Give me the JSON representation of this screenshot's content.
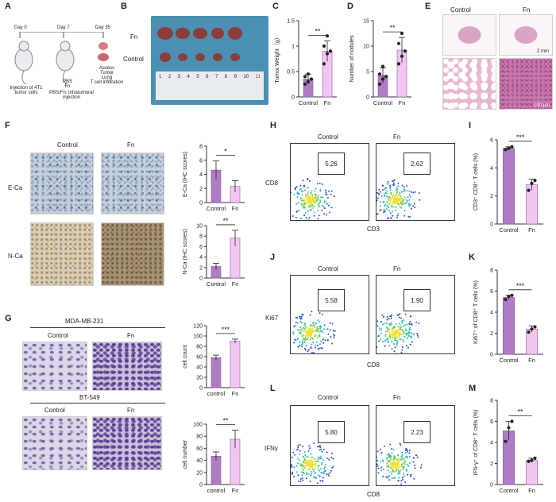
{
  "panels": {
    "A": {
      "letter": "A",
      "days": [
        "Day 0",
        "Day 7",
        "Day 35"
      ],
      "labels": [
        "Injection of 4T1 tumor cells",
        "PBS\nFn",
        "Assess\nTumor\nLung\nT cell infiltration"
      ],
      "note": "PBS/Fn: intratumoral injection"
    },
    "B": {
      "letter": "B",
      "row_fn": "Fn",
      "row_control": "Control",
      "ruler": [
        "1",
        "2",
        "3",
        "4",
        "5",
        "6",
        "7",
        "8",
        "9",
        "10",
        "11"
      ]
    },
    "C": {
      "letter": "C",
      "ylabel": "Tumor Weight（g）",
      "sig": "**",
      "categories": [
        "Control",
        "Fn"
      ]
    },
    "D": {
      "letter": "D",
      "ylabel": "Number of nodules",
      "sig": "**",
      "categories": [
        "Control",
        "Fn"
      ]
    },
    "E": {
      "letter": "E",
      "col_control": "Control",
      "col_fn": "Fn",
      "scale1": "2 mm",
      "scale2": "100 μm"
    },
    "F": {
      "letter": "F",
      "col_control": "Control",
      "col_fn": "Fn",
      "row1": "E-Ca",
      "row2": "N-Ca"
    },
    "G": {
      "letter": "G",
      "cell1": "MDA-MB-231",
      "cell2": "BT-549",
      "col_control": "Control",
      "col_fn": "Fn"
    },
    "H": {
      "letter": "H",
      "col_control": "Control",
      "col_fn": "Fn",
      "ylabel": "CD8",
      "xlabel": "CD3",
      "val_control": "5.26",
      "val_fn": "2.62"
    },
    "I": {
      "letter": "I",
      "ylabel": "CD3⁺ CD8⁺ T cells (%)",
      "sig": "***"
    },
    "J": {
      "letter": "J",
      "col_control": "Control",
      "col_fn": "Fn",
      "ylabel": "Ki67",
      "xlabel": "CD8",
      "val_control": "5.58",
      "val_fn": "1.90"
    },
    "K": {
      "letter": "K",
      "ylabel": "Ki67⁺ of CD8⁺ T cells (%)",
      "sig": "***"
    },
    "L": {
      "letter": "L",
      "col_control": "Control",
      "col_fn": "Fn",
      "ylabel": "IFNγ",
      "xlabel": "CD8",
      "val_control": "5.80",
      "val_fn": "2.23"
    },
    "M": {
      "letter": "M",
      "ylabel": "IFN-γ⁺ of CD8⁺ T cells (%)",
      "sig": "**"
    }
  },
  "colors": {
    "control": "#b07cc6",
    "fn": "#f3c6f2",
    "bar_edge": "#8a5aa0"
  },
  "chart_data": [
    {
      "id": "C",
      "type": "bar",
      "categories": [
        "Control",
        "Fn"
      ],
      "values": [
        0.35,
        0.9
      ],
      "errors": [
        0.1,
        0.2
      ],
      "points": [
        [
          0.25,
          0.3,
          0.35,
          0.4,
          0.45
        ],
        [
          0.65,
          0.85,
          0.9,
          1.0,
          1.2
        ]
      ],
      "ylabel": "Tumor Weight（g）",
      "ylim": [
        0,
        1.5
      ],
      "ticks": [
        0.0,
        0.5,
        1.0,
        1.5
      ],
      "sig": "**"
    },
    {
      "id": "D",
      "type": "bar",
      "categories": [
        "Control",
        "Fn"
      ],
      "values": [
        4.2,
        9.2
      ],
      "errors": [
        1.5,
        2.5
      ],
      "points": [
        [
          2.5,
          3.5,
          4.0,
          4.5,
          6.0
        ],
        [
          6.5,
          8.0,
          9.0,
          10.5,
          12.5
        ]
      ],
      "ylabel": "Number of nodules",
      "ylim": [
        0,
        15
      ],
      "ticks": [
        0,
        5,
        10,
        15
      ],
      "sig": "**"
    },
    {
      "id": "F1",
      "type": "bar",
      "categories": [
        "Control",
        "Fn"
      ],
      "values": [
        4.6,
        2.3
      ],
      "errors": [
        1.3,
        0.8
      ],
      "points": [
        [],
        []
      ],
      "ylabel": "E-Ca (IHC scores)",
      "ylim": [
        0,
        8
      ],
      "ticks": [
        0,
        2,
        4,
        6,
        8
      ],
      "sig": "*"
    },
    {
      "id": "F2",
      "type": "bar",
      "categories": [
        "Control",
        "Fn"
      ],
      "values": [
        2.2,
        7.6
      ],
      "errors": [
        0.6,
        1.5
      ],
      "points": [
        [],
        []
      ],
      "ylabel": "N-Ca (IHC scores)",
      "ylim": [
        0,
        10
      ],
      "ticks": [
        0,
        2,
        4,
        6,
        8,
        10
      ],
      "sig": "**"
    },
    {
      "id": "G1",
      "type": "bar",
      "categories": [
        "control",
        "Fn"
      ],
      "values": [
        58,
        90
      ],
      "errors": [
        5,
        4
      ],
      "points": [
        [],
        []
      ],
      "ylabel": "cell count",
      "ylim": [
        0,
        120
      ],
      "ticks": [
        0,
        20,
        40,
        60,
        80,
        100,
        120
      ],
      "sig": "***"
    },
    {
      "id": "G2",
      "type": "bar",
      "categories": [
        "control",
        "Fn"
      ],
      "values": [
        47,
        75
      ],
      "errors": [
        7,
        15
      ],
      "points": [
        [],
        []
      ],
      "ylabel": "cell number",
      "ylim": [
        0,
        100
      ],
      "ticks": [
        0,
        20,
        40,
        60,
        80,
        100
      ],
      "sig": "**"
    },
    {
      "id": "I",
      "type": "bar",
      "categories": [
        "Control",
        "Fn"
      ],
      "values": [
        5.4,
        2.8
      ],
      "errors": [
        0.1,
        0.4
      ],
      "points": [
        [
          5.3,
          5.4,
          5.5
        ],
        [
          2.4,
          2.9,
          3.1
        ]
      ],
      "ylabel": "CD3⁺ CD8⁺ T cells (%)",
      "ylim": [
        0,
        6
      ],
      "ticks": [
        0,
        2,
        4,
        6
      ],
      "sig": "***"
    },
    {
      "id": "K",
      "type": "bar",
      "categories": [
        "Control",
        "Fn"
      ],
      "values": [
        5.4,
        2.4
      ],
      "errors": [
        0.2,
        0.3
      ],
      "points": [
        [
          5.2,
          5.5,
          5.6
        ],
        [
          2.1,
          2.4,
          2.6
        ]
      ],
      "ylabel": "Ki67⁺ of CD8⁺ T cells (%)",
      "ylim": [
        0,
        8
      ],
      "ticks": [
        0,
        2,
        4,
        6,
        8
      ],
      "sig": "***"
    },
    {
      "id": "M",
      "type": "bar",
      "categories": [
        "Control",
        "Fn"
      ],
      "values": [
        5.1,
        2.3
      ],
      "errors": [
        0.9,
        0.2
      ],
      "points": [
        [
          4.1,
          5.4,
          6.0
        ],
        [
          2.2,
          2.3,
          2.5
        ]
      ],
      "ylabel": "IFN-γ⁺ of CD8⁺ T cells (%)",
      "ylim": [
        0,
        8
      ],
      "ticks": [
        0,
        2,
        4,
        6,
        8
      ],
      "sig": "**"
    }
  ]
}
